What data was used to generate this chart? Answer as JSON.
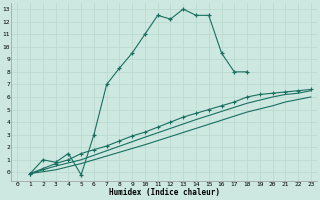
{
  "xlabel": "Humidex (Indice chaleur)",
  "bg_color": "#cce8e0",
  "grid_color": "#b8d8d0",
  "line_color": "#1a6e60",
  "xlim": [
    -0.5,
    23.5
  ],
  "ylim": [
    -0.7,
    13.5
  ],
  "x_ticks": [
    0,
    1,
    2,
    3,
    4,
    5,
    6,
    7,
    8,
    9,
    10,
    11,
    12,
    13,
    14,
    15,
    16,
    17,
    18,
    19,
    20,
    21,
    22,
    23
  ],
  "y_ticks": [
    0,
    1,
    2,
    3,
    4,
    5,
    6,
    7,
    8,
    9,
    10,
    11,
    12,
    13
  ],
  "line1_x": [
    1,
    2,
    3,
    4,
    5,
    6,
    7,
    8,
    9,
    10,
    11,
    12,
    13,
    14,
    15,
    16,
    17,
    18
  ],
  "line1_y": [
    -0.1,
    1.0,
    0.8,
    1.5,
    -0.2,
    3.0,
    7.0,
    8.3,
    9.5,
    11.0,
    12.5,
    12.2,
    13.0,
    12.5,
    12.5,
    9.5,
    8.0,
    8.0
  ],
  "line2_x": [
    1,
    2,
    3,
    4,
    5,
    6,
    7,
    8,
    9,
    10,
    11,
    12,
    13,
    14,
    15,
    16,
    17,
    18,
    19,
    20,
    21,
    22,
    23
  ],
  "line2_y": [
    -0.1,
    0.3,
    0.7,
    1.0,
    1.5,
    1.8,
    2.1,
    2.5,
    2.9,
    3.2,
    3.6,
    4.0,
    4.4,
    4.7,
    5.0,
    5.3,
    5.6,
    6.0,
    6.2,
    6.3,
    6.4,
    6.5,
    6.6
  ],
  "line3_x": [
    1,
    3,
    5,
    10,
    14,
    18,
    20,
    21,
    22,
    23
  ],
  "line3_y": [
    -0.1,
    0.5,
    1.0,
    2.8,
    4.2,
    5.5,
    6.0,
    6.2,
    6.3,
    6.5
  ],
  "line4_x": [
    1,
    3,
    5,
    10,
    14,
    18,
    20,
    21,
    22,
    23
  ],
  "line4_y": [
    -0.1,
    0.2,
    0.7,
    2.2,
    3.5,
    4.8,
    5.3,
    5.6,
    5.8,
    6.0
  ]
}
